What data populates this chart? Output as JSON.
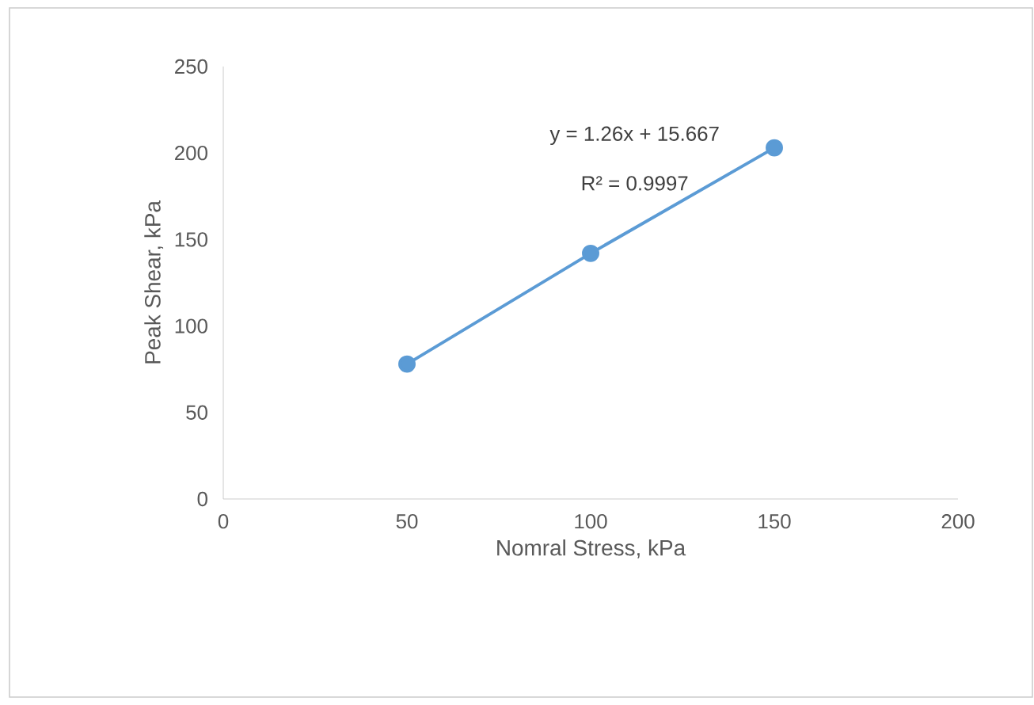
{
  "chart_data": {
    "type": "line",
    "xlabel": "Nomral Stress, kPa",
    "ylabel": "Peak Shear, kPa",
    "x": [
      50,
      100,
      150
    ],
    "series": [
      {
        "color": "#5b9bd5",
        "values": [
          78,
          142,
          203
        ]
      }
    ],
    "marker": "circle",
    "line_style": "solid",
    "xlim": [
      0,
      200
    ],
    "xticks": [
      0,
      50,
      100,
      150,
      200
    ],
    "ylim": [
      0,
      250
    ],
    "yticks": [
      0,
      50,
      100,
      150,
      200,
      250
    ],
    "annotations": [
      "y = 1.26x + 15.667",
      "R² = 0.9997"
    ]
  }
}
